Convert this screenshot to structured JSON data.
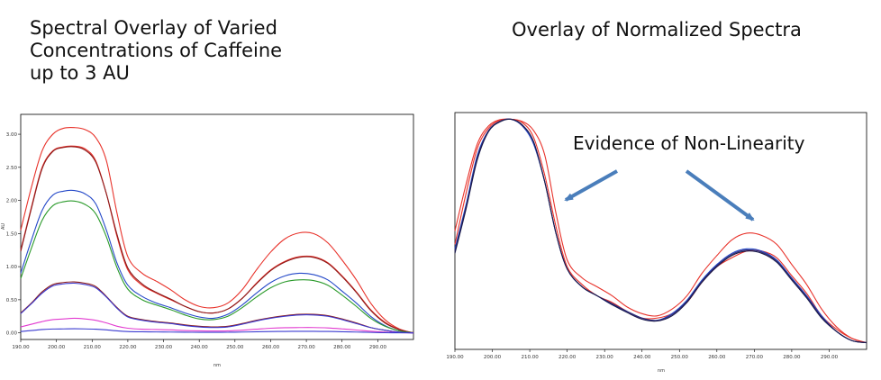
{
  "chart_data": [
    {
      "type": "line",
      "title_lines": [
        "Spectral Overlay of Varied",
        "Concentrations of Caffeine",
        "up to 3 AU"
      ],
      "xlabel": "nm",
      "ylabel": "AU",
      "xlim": [
        190,
        300
      ],
      "ylim": [
        -0.1,
        3.3
      ],
      "xticks": [
        190,
        200,
        210,
        220,
        230,
        240,
        250,
        260,
        270,
        280,
        290
      ],
      "xtick_labels": [
        "190.00",
        "200.00",
        "210.00",
        "220.00",
        "230.00",
        "240.00",
        "250.00",
        "260.00",
        "270.00",
        "280.00",
        "290.00"
      ],
      "yticks": [
        0,
        0.5,
        1,
        1.5,
        2,
        2.5,
        3
      ],
      "ytick_labels": [
        "0.00",
        "0.50",
        "1.00",
        "1.50",
        "2.00",
        "2.50",
        "3.00"
      ],
      "x": [
        190,
        193,
        196,
        199,
        202,
        205,
        208,
        211,
        214,
        217,
        220,
        224,
        228,
        232,
        236,
        240,
        244,
        248,
        252,
        256,
        260,
        264,
        268,
        272,
        276,
        280,
        284,
        288,
        292,
        296,
        300
      ],
      "series": [
        {
          "color": "#e8322a",
          "values": [
            1.55,
            2.2,
            2.75,
            3.0,
            3.09,
            3.1,
            3.07,
            2.95,
            2.6,
            1.8,
            1.15,
            0.9,
            0.78,
            0.65,
            0.5,
            0.4,
            0.38,
            0.45,
            0.65,
            0.95,
            1.22,
            1.42,
            1.51,
            1.5,
            1.36,
            1.1,
            0.8,
            0.45,
            0.2,
            0.06,
            0.0
          ]
        },
        {
          "color": "#e8322a",
          "values": [
            1.25,
            1.9,
            2.5,
            2.75,
            2.81,
            2.82,
            2.78,
            2.6,
            2.1,
            1.45,
            0.95,
            0.72,
            0.6,
            0.5,
            0.4,
            0.32,
            0.3,
            0.36,
            0.52,
            0.75,
            0.95,
            1.08,
            1.15,
            1.15,
            1.06,
            0.86,
            0.62,
            0.35,
            0.16,
            0.05,
            0.0
          ]
        },
        {
          "color": "#8b1a1a",
          "values": [
            1.23,
            1.88,
            2.48,
            2.74,
            2.8,
            2.81,
            2.76,
            2.58,
            2.1,
            1.48,
            0.98,
            0.74,
            0.61,
            0.51,
            0.4,
            0.32,
            0.3,
            0.36,
            0.52,
            0.74,
            0.94,
            1.07,
            1.14,
            1.14,
            1.05,
            0.85,
            0.61,
            0.34,
            0.15,
            0.05,
            0.0
          ]
        },
        {
          "color": "#2448c8",
          "values": [
            0.9,
            1.4,
            1.85,
            2.08,
            2.14,
            2.15,
            2.1,
            1.95,
            1.55,
            1.05,
            0.72,
            0.55,
            0.45,
            0.38,
            0.3,
            0.24,
            0.22,
            0.28,
            0.42,
            0.6,
            0.76,
            0.86,
            0.9,
            0.88,
            0.8,
            0.63,
            0.45,
            0.25,
            0.11,
            0.03,
            0.0
          ]
        },
        {
          "color": "#2a9a2a",
          "values": [
            0.82,
            1.28,
            1.7,
            1.92,
            1.98,
            1.99,
            1.94,
            1.8,
            1.45,
            0.98,
            0.66,
            0.5,
            0.42,
            0.35,
            0.27,
            0.21,
            0.2,
            0.25,
            0.38,
            0.54,
            0.68,
            0.77,
            0.8,
            0.79,
            0.72,
            0.57,
            0.4,
            0.22,
            0.1,
            0.03,
            0.0
          ]
        },
        {
          "color": "#8b1a1a",
          "values": [
            0.3,
            0.45,
            0.62,
            0.73,
            0.76,
            0.77,
            0.75,
            0.7,
            0.55,
            0.38,
            0.25,
            0.2,
            0.17,
            0.15,
            0.12,
            0.1,
            0.09,
            0.1,
            0.14,
            0.19,
            0.23,
            0.26,
            0.28,
            0.28,
            0.26,
            0.21,
            0.15,
            0.08,
            0.04,
            0.01,
            0.0
          ]
        },
        {
          "color": "#3a3ad0",
          "values": [
            0.29,
            0.44,
            0.6,
            0.71,
            0.74,
            0.75,
            0.73,
            0.68,
            0.54,
            0.37,
            0.24,
            0.19,
            0.16,
            0.14,
            0.11,
            0.09,
            0.08,
            0.09,
            0.13,
            0.18,
            0.22,
            0.25,
            0.27,
            0.27,
            0.25,
            0.2,
            0.14,
            0.08,
            0.04,
            0.01,
            0.0
          ]
        },
        {
          "color": "#e23ad0",
          "values": [
            0.09,
            0.13,
            0.17,
            0.2,
            0.21,
            0.22,
            0.21,
            0.19,
            0.15,
            0.1,
            0.07,
            0.055,
            0.05,
            0.045,
            0.035,
            0.03,
            0.028,
            0.03,
            0.04,
            0.055,
            0.07,
            0.078,
            0.08,
            0.08,
            0.074,
            0.06,
            0.043,
            0.025,
            0.012,
            0.003,
            0.0
          ]
        },
        {
          "color": "#3a3ad0",
          "values": [
            0.02,
            0.035,
            0.05,
            0.058,
            0.06,
            0.062,
            0.06,
            0.055,
            0.045,
            0.03,
            0.02,
            0.016,
            0.014,
            0.012,
            0.01,
            0.008,
            0.008,
            0.009,
            0.012,
            0.016,
            0.02,
            0.022,
            0.023,
            0.023,
            0.021,
            0.017,
            0.012,
            0.007,
            0.003,
            0.001,
            0.0
          ]
        }
      ]
    },
    {
      "type": "line",
      "title": "Overlay of Normalized Spectra",
      "xlabel": "nm",
      "xlim": [
        190,
        300
      ],
      "ylim": [
        -0.03,
        1.03
      ],
      "xticks": [
        190,
        200,
        210,
        220,
        230,
        240,
        250,
        260,
        270,
        280,
        290
      ],
      "xtick_labels": [
        "190.00",
        "200.00",
        "210.00",
        "220.00",
        "230.00",
        "240.00",
        "250.00",
        "260.00",
        "270.00",
        "280.00",
        "290.00"
      ],
      "annotation": "Evidence of Non-Linearity",
      "arrow_color": "#4a7ebb",
      "x": [
        190,
        193,
        196,
        199,
        202,
        205,
        208,
        211,
        214,
        217,
        220,
        224,
        228,
        232,
        236,
        240,
        244,
        248,
        252,
        256,
        260,
        264,
        268,
        272,
        276,
        280,
        284,
        288,
        292,
        296,
        300
      ],
      "series": [
        {
          "color": "#e8322a",
          "values": [
            0.5,
            0.71,
            0.89,
            0.97,
            0.998,
            1.0,
            0.99,
            0.95,
            0.84,
            0.58,
            0.37,
            0.29,
            0.25,
            0.21,
            0.16,
            0.13,
            0.12,
            0.15,
            0.21,
            0.31,
            0.39,
            0.46,
            0.49,
            0.48,
            0.44,
            0.35,
            0.26,
            0.15,
            0.07,
            0.02,
            0.0
          ]
        },
        {
          "color": "#e8322a",
          "values": [
            0.44,
            0.67,
            0.87,
            0.96,
            0.995,
            1.0,
            0.985,
            0.92,
            0.75,
            0.52,
            0.34,
            0.26,
            0.21,
            0.18,
            0.14,
            0.11,
            0.11,
            0.13,
            0.18,
            0.27,
            0.34,
            0.38,
            0.41,
            0.41,
            0.38,
            0.3,
            0.22,
            0.12,
            0.06,
            0.02,
            0.0
          ]
        },
        {
          "color": "#2448c8",
          "values": [
            0.42,
            0.62,
            0.84,
            0.95,
            0.99,
            1.0,
            0.97,
            0.89,
            0.72,
            0.49,
            0.33,
            0.25,
            0.21,
            0.17,
            0.14,
            0.11,
            0.1,
            0.13,
            0.19,
            0.28,
            0.35,
            0.4,
            0.42,
            0.41,
            0.37,
            0.29,
            0.21,
            0.12,
            0.05,
            0.01,
            0.0
          ]
        },
        {
          "color": "#2a2a7a",
          "values": [
            0.41,
            0.61,
            0.83,
            0.948,
            0.99,
            1.0,
            0.972,
            0.9,
            0.72,
            0.49,
            0.33,
            0.25,
            0.21,
            0.175,
            0.14,
            0.11,
            0.1,
            0.125,
            0.185,
            0.275,
            0.345,
            0.395,
            0.415,
            0.405,
            0.365,
            0.285,
            0.205,
            0.115,
            0.05,
            0.01,
            0.0
          ]
        },
        {
          "color": "#1a1a4a",
          "values": [
            0.4,
            0.6,
            0.82,
            0.945,
            0.988,
            1.0,
            0.975,
            0.9,
            0.72,
            0.49,
            0.33,
            0.25,
            0.21,
            0.17,
            0.135,
            0.105,
            0.097,
            0.12,
            0.18,
            0.27,
            0.34,
            0.39,
            0.41,
            0.4,
            0.36,
            0.28,
            0.2,
            0.11,
            0.05,
            0.01,
            0.0
          ]
        }
      ]
    }
  ]
}
